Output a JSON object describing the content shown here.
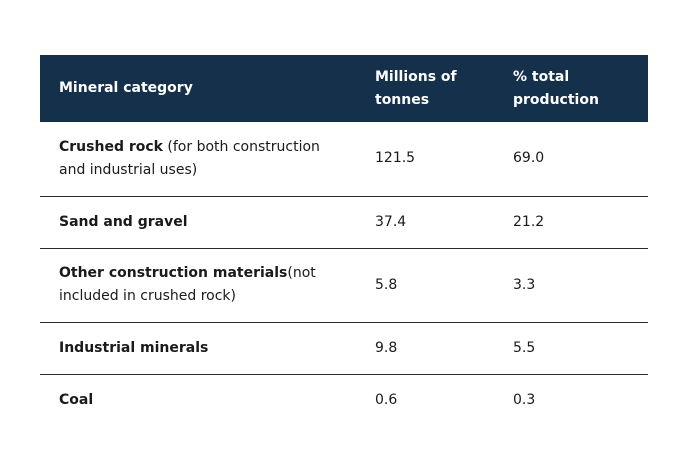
{
  "table": {
    "headers": {
      "category": "Mineral category",
      "millions": "Millions of tonnes",
      "percent": "% total production"
    },
    "rows": [
      {
        "name": "Crushed rock",
        "note": " (for both construction and industrial uses)",
        "millions": "121.5",
        "percent": "69.0"
      },
      {
        "name": "Sand and gravel",
        "note": "",
        "millions": "37.4",
        "percent": "21.2"
      },
      {
        "name": "Other construction materials",
        "note": "(not included in crushed rock)",
        "millions": "5.8",
        "percent": "3.3"
      },
      {
        "name": "Industrial minerals",
        "note": "",
        "millions": "9.8",
        "percent": "5.5"
      },
      {
        "name": "Coal",
        "note": "",
        "millions": "0.6",
        "percent": "0.3"
      }
    ]
  },
  "colors": {
    "header_bg": "#15304a",
    "header_text": "#ffffff"
  }
}
